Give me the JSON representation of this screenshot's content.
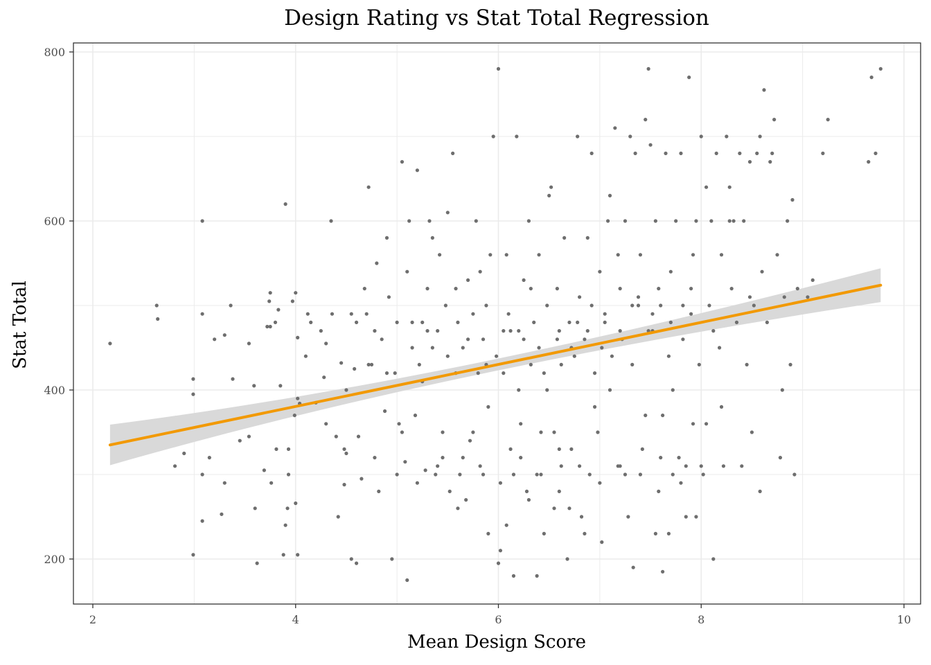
{
  "chart_data": {
    "type": "scatter",
    "title": "Design Rating vs Stat Total Regression",
    "xlabel": "Mean Design Score",
    "ylabel": "Stat Total",
    "xlim": [
      1.8,
      10.1
    ],
    "ylim": [
      148,
      812
    ],
    "x_ticks": [
      2,
      4,
      6,
      8,
      10
    ],
    "y_ticks": [
      200,
      400,
      600,
      800
    ],
    "grid": true,
    "colors": {
      "points": "#6e6e6e",
      "fit_line": "#f29900",
      "confidence_band": "#d9d9d9",
      "grid": "#ebebeb"
    },
    "regression": {
      "x": [
        2.17,
        9.77
      ],
      "y": [
        335,
        524
      ],
      "ci_width": [
        24,
        20
      ]
    },
    "points": [
      [
        2.17,
        455
      ],
      [
        2.63,
        500
      ],
      [
        2.64,
        484
      ],
      [
        2.81,
        310
      ],
      [
        2.9,
        325
      ],
      [
        2.99,
        205
      ],
      [
        2.99,
        395
      ],
      [
        2.99,
        413
      ],
      [
        3.08,
        600
      ],
      [
        3.08,
        490
      ],
      [
        3.08,
        300
      ],
      [
        3.08,
        245
      ],
      [
        3.2,
        460
      ],
      [
        3.27,
        253
      ],
      [
        3.3,
        465
      ],
      [
        3.3,
        290
      ],
      [
        3.36,
        500
      ],
      [
        3.38,
        413
      ],
      [
        3.54,
        455
      ],
      [
        3.54,
        345
      ],
      [
        3.59,
        405
      ],
      [
        3.62,
        195
      ],
      [
        3.69,
        305
      ],
      [
        3.72,
        475
      ],
      [
        3.74,
        505
      ],
      [
        3.75,
        515
      ],
      [
        3.75,
        475
      ],
      [
        3.76,
        290
      ],
      [
        3.8,
        480
      ],
      [
        3.81,
        330
      ],
      [
        3.83,
        495
      ],
      [
        3.85,
        405
      ],
      [
        3.88,
        205
      ],
      [
        3.9,
        620
      ],
      [
        3.92,
        260
      ],
      [
        3.93,
        330
      ],
      [
        3.93,
        300
      ],
      [
        3.97,
        505
      ],
      [
        3.99,
        370
      ],
      [
        4.02,
        205
      ],
      [
        4.0,
        266
      ],
      [
        4.02,
        390
      ],
      [
        4.0,
        515
      ],
      [
        4.04,
        384
      ],
      [
        4.02,
        462
      ],
      [
        4.12,
        490
      ],
      [
        4.15,
        480
      ],
      [
        4.2,
        385
      ],
      [
        4.25,
        470
      ],
      [
        4.28,
        415
      ],
      [
        4.3,
        455
      ],
      [
        4.35,
        600
      ],
      [
        4.36,
        490
      ],
      [
        4.4,
        345
      ],
      [
        4.45,
        432
      ],
      [
        4.48,
        288
      ],
      [
        4.5,
        325
      ],
      [
        4.55,
        490
      ],
      [
        4.55,
        200
      ],
      [
        4.58,
        425
      ],
      [
        4.6,
        480
      ],
      [
        4.62,
        345
      ],
      [
        4.65,
        295
      ],
      [
        4.68,
        520
      ],
      [
        4.7,
        490
      ],
      [
        4.72,
        640
      ],
      [
        4.75,
        430
      ],
      [
        4.78,
        470
      ],
      [
        4.8,
        550
      ],
      [
        4.82,
        280
      ],
      [
        4.85,
        460
      ],
      [
        4.88,
        375
      ],
      [
        4.9,
        580
      ],
      [
        4.92,
        510
      ],
      [
        4.95,
        200
      ],
      [
        4.98,
        420
      ],
      [
        5.0,
        480
      ],
      [
        5.02,
        360
      ],
      [
        5.05,
        670
      ],
      [
        5.08,
        315
      ],
      [
        5.1,
        540
      ],
      [
        5.12,
        600
      ],
      [
        5.15,
        480
      ],
      [
        5.18,
        370
      ],
      [
        5.2,
        660
      ],
      [
        5.22,
        430
      ],
      [
        5.25,
        480
      ],
      [
        5.28,
        305
      ],
      [
        5.3,
        520
      ],
      [
        5.32,
        600
      ],
      [
        5.35,
        450
      ],
      [
        5.38,
        300
      ],
      [
        5.4,
        470
      ],
      [
        5.42,
        560
      ],
      [
        5.45,
        350
      ],
      [
        5.48,
        500
      ],
      [
        5.5,
        610
      ],
      [
        5.52,
        280
      ],
      [
        5.55,
        680
      ],
      [
        5.58,
        420
      ],
      [
        5.6,
        480
      ],
      [
        5.62,
        300
      ],
      [
        5.65,
        450
      ],
      [
        5.68,
        270
      ],
      [
        5.7,
        530
      ],
      [
        5.72,
        340
      ],
      [
        5.75,
        490
      ],
      [
        5.78,
        600
      ],
      [
        5.8,
        420
      ],
      [
        5.82,
        310
      ],
      [
        5.85,
        460
      ],
      [
        5.88,
        500
      ],
      [
        5.9,
        380
      ],
      [
        5.92,
        560
      ],
      [
        5.95,
        700
      ],
      [
        5.98,
        440
      ],
      [
        6.0,
        780
      ],
      [
        6.02,
        210
      ],
      [
        6.05,
        420
      ],
      [
        6.08,
        560
      ],
      [
        6.1,
        490
      ],
      [
        6.12,
        330
      ],
      [
        6.15,
        300
      ],
      [
        6.18,
        700
      ],
      [
        6.2,
        470
      ],
      [
        6.22,
        360
      ],
      [
        6.25,
        530
      ],
      [
        6.28,
        280
      ],
      [
        6.3,
        600
      ],
      [
        6.32,
        430
      ],
      [
        6.35,
        480
      ],
      [
        6.38,
        300
      ],
      [
        6.4,
        560
      ],
      [
        6.42,
        350
      ],
      [
        6.45,
        420
      ],
      [
        6.48,
        500
      ],
      [
        6.5,
        630
      ],
      [
        6.52,
        640
      ],
      [
        6.55,
        260
      ],
      [
        6.58,
        520
      ],
      [
        6.6,
        470
      ],
      [
        6.62,
        310
      ],
      [
        6.65,
        580
      ],
      [
        6.68,
        200
      ],
      [
        6.7,
        480
      ],
      [
        6.72,
        330
      ],
      [
        6.75,
        440
      ],
      [
        6.78,
        700
      ],
      [
        6.8,
        510
      ],
      [
        6.82,
        250
      ],
      [
        6.85,
        460
      ],
      [
        6.88,
        580
      ],
      [
        6.9,
        300
      ],
      [
        6.92,
        680
      ],
      [
        6.95,
        420
      ],
      [
        6.98,
        350
      ],
      [
        7.0,
        540
      ],
      [
        7.02,
        220
      ],
      [
        7.05,
        490
      ],
      [
        7.08,
        600
      ],
      [
        7.1,
        630
      ],
      [
        7.12,
        440
      ],
      [
        7.15,
        710
      ],
      [
        7.18,
        310
      ],
      [
        7.2,
        520
      ],
      [
        7.22,
        460
      ],
      [
        7.25,
        600
      ],
      [
        7.28,
        250
      ],
      [
        7.3,
        700
      ],
      [
        7.32,
        430
      ],
      [
        7.35,
        680
      ],
      [
        7.38,
        510
      ],
      [
        7.4,
        560
      ],
      [
        7.42,
        330
      ],
      [
        7.45,
        720
      ],
      [
        7.48,
        780
      ],
      [
        7.5,
        690
      ],
      [
        7.52,
        470
      ],
      [
        7.55,
        600
      ],
      [
        7.58,
        280
      ],
      [
        7.6,
        500
      ],
      [
        7.62,
        370
      ],
      [
        7.65,
        680
      ],
      [
        7.68,
        230
      ],
      [
        7.7,
        540
      ],
      [
        7.72,
        400
      ],
      [
        7.75,
        600
      ],
      [
        7.78,
        320
      ],
      [
        7.8,
        680
      ],
      [
        7.82,
        460
      ],
      [
        7.85,
        250
      ],
      [
        7.88,
        770
      ],
      [
        7.9,
        520
      ],
      [
        7.92,
        360
      ],
      [
        7.95,
        600
      ],
      [
        7.98,
        430
      ],
      [
        8.0,
        700
      ],
      [
        8.02,
        300
      ],
      [
        8.05,
        640
      ],
      [
        8.08,
        500
      ],
      [
        8.1,
        600
      ],
      [
        8.12,
        200
      ],
      [
        8.15,
        680
      ],
      [
        8.18,
        450
      ],
      [
        8.2,
        560
      ],
      [
        8.22,
        310
      ],
      [
        8.25,
        700
      ],
      [
        8.28,
        640
      ],
      [
        8.3,
        520
      ],
      [
        8.32,
        600
      ],
      [
        8.35,
        480
      ],
      [
        8.38,
        680
      ],
      [
        8.42,
        600
      ],
      [
        8.45,
        430
      ],
      [
        8.48,
        670
      ],
      [
        8.5,
        350
      ],
      [
        8.52,
        500
      ],
      [
        8.55,
        680
      ],
      [
        8.58,
        700
      ],
      [
        8.6,
        540
      ],
      [
        8.62,
        755
      ],
      [
        8.65,
        480
      ],
      [
        8.68,
        670
      ],
      [
        8.7,
        680
      ],
      [
        8.72,
        720
      ],
      [
        8.75,
        560
      ],
      [
        8.78,
        320
      ],
      [
        8.8,
        400
      ],
      [
        8.82,
        510
      ],
      [
        8.85,
        600
      ],
      [
        8.88,
        430
      ],
      [
        8.9,
        625
      ],
      [
        8.92,
        300
      ],
      [
        8.95,
        520
      ],
      [
        9.05,
        510
      ],
      [
        9.1,
        530
      ],
      [
        9.2,
        680
      ],
      [
        9.25,
        720
      ],
      [
        9.65,
        670
      ],
      [
        9.68,
        770
      ],
      [
        9.72,
        680
      ],
      [
        9.77,
        780
      ],
      [
        3.45,
        340
      ],
      [
        3.15,
        320
      ],
      [
        4.1,
        440
      ],
      [
        4.42,
        250
      ],
      [
        4.6,
        195
      ],
      [
        4.78,
        320
      ],
      [
        5.05,
        350
      ],
      [
        5.1,
        175
      ],
      [
        5.25,
        410
      ],
      [
        5.45,
        320
      ],
      [
        5.6,
        260
      ],
      [
        5.75,
        350
      ],
      [
        5.9,
        230
      ],
      [
        6.0,
        195
      ],
      [
        6.08,
        240
      ],
      [
        6.15,
        180
      ],
      [
        6.2,
        400
      ],
      [
        6.3,
        270
      ],
      [
        6.38,
        180
      ],
      [
        6.45,
        230
      ],
      [
        6.55,
        350
      ],
      [
        6.6,
        280
      ],
      [
        6.7,
        260
      ],
      [
        6.85,
        230
      ],
      [
        6.95,
        380
      ],
      [
        7.1,
        400
      ],
      [
        7.25,
        300
      ],
      [
        7.33,
        190
      ],
      [
        7.45,
        370
      ],
      [
        7.55,
        230
      ],
      [
        7.62,
        185
      ],
      [
        7.72,
        300
      ],
      [
        7.85,
        310
      ],
      [
        7.95,
        250
      ],
      [
        8.05,
        360
      ],
      [
        8.2,
        380
      ],
      [
        8.4,
        310
      ],
      [
        8.58,
        280
      ],
      [
        5.35,
        580
      ],
      [
        5.58,
        520
      ],
      [
        5.82,
        540
      ],
      [
        6.12,
        470
      ],
      [
        6.32,
        520
      ],
      [
        6.48,
        400
      ],
      [
        6.62,
        430
      ],
      [
        6.78,
        480
      ],
      [
        6.92,
        500
      ],
      [
        7.02,
        450
      ],
      [
        7.18,
        560
      ],
      [
        7.32,
        500
      ],
      [
        7.48,
        470
      ],
      [
        7.58,
        520
      ],
      [
        7.68,
        440
      ],
      [
        7.82,
        500
      ],
      [
        7.92,
        560
      ],
      [
        8.12,
        470
      ],
      [
        8.28,
        600
      ],
      [
        8.48,
        510
      ],
      [
        4.5,
        400
      ],
      [
        4.72,
        430
      ],
      [
        4.9,
        420
      ],
      [
        5.15,
        450
      ],
      [
        5.3,
        470
      ],
      [
        5.5,
        440
      ],
      [
        5.7,
        460
      ],
      [
        5.88,
        430
      ],
      [
        6.05,
        470
      ],
      [
        6.25,
        460
      ],
      [
        6.4,
        450
      ],
      [
        6.58,
        460
      ],
      [
        6.72,
        450
      ],
      [
        6.88,
        470
      ],
      [
        7.05,
        480
      ],
      [
        7.2,
        470
      ],
      [
        7.38,
        500
      ],
      [
        7.52,
        490
      ],
      [
        7.7,
        480
      ],
      [
        7.9,
        490
      ],
      [
        5.0,
        300
      ],
      [
        5.2,
        290
      ],
      [
        5.4,
        310
      ],
      [
        5.65,
        320
      ],
      [
        5.85,
        300
      ],
      [
        6.02,
        290
      ],
      [
        6.22,
        320
      ],
      [
        6.42,
        300
      ],
      [
        6.6,
        330
      ],
      [
        6.8,
        310
      ],
      [
        7.0,
        290
      ],
      [
        7.2,
        310
      ],
      [
        7.4,
        300
      ],
      [
        7.6,
        320
      ],
      [
        7.8,
        290
      ],
      [
        8.0,
        310
      ],
      [
        3.6,
        260
      ],
      [
        3.9,
        240
      ],
      [
        4.3,
        360
      ],
      [
        4.48,
        330
      ]
    ]
  }
}
